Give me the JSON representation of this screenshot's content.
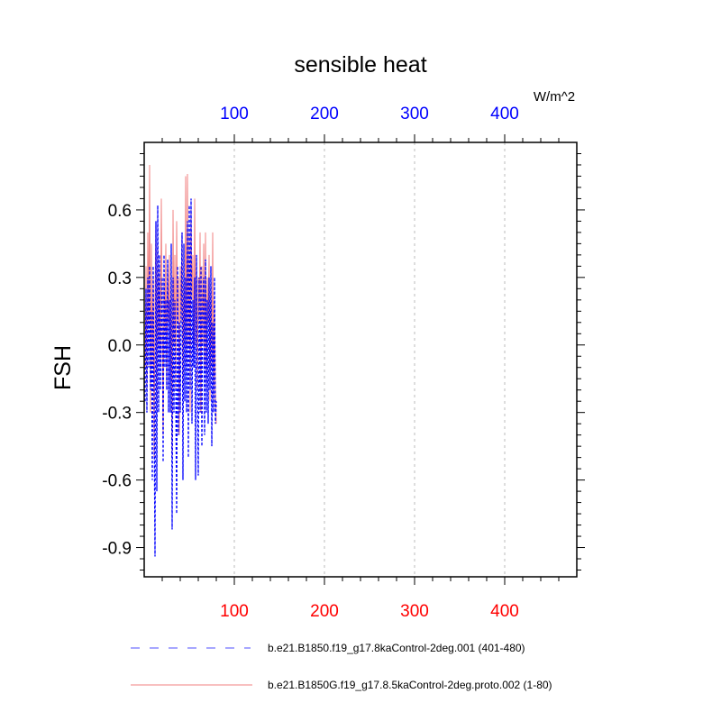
{
  "chart_data": {
    "type": "line",
    "title": "sensible heat",
    "ylabel": "FSH",
    "units_label": "W/m^2",
    "xlim": [
      0,
      480
    ],
    "ylim": [
      -1.03,
      0.9
    ],
    "y_ticks": [
      {
        "value": 0.6,
        "label": "0.6"
      },
      {
        "value": 0.3,
        "label": "0.3"
      },
      {
        "value": 0.0,
        "label": "0.0"
      },
      {
        "value": -0.3,
        "label": "-0.3"
      },
      {
        "value": -0.6,
        "label": "-0.6"
      },
      {
        "value": -0.9,
        "label": "-0.9"
      }
    ],
    "top_x_ticks": [
      {
        "value": 100,
        "label": "100"
      },
      {
        "value": 200,
        "label": "200"
      },
      {
        "value": 300,
        "label": "300"
      },
      {
        "value": 400,
        "label": "400"
      }
    ],
    "bottom_x_ticks": [
      {
        "value": 100,
        "label": "100"
      },
      {
        "value": 200,
        "label": "200"
      },
      {
        "value": 300,
        "label": "300"
      },
      {
        "value": 400,
        "label": "400"
      }
    ],
    "top_axis_color": "#0000ff",
    "bottom_axis_color": "#ff0000",
    "grid": "vertical dashed at major x ticks",
    "legend_position": "bottom",
    "series": [
      {
        "name": "b.e21.B1850.f19_g17.8kaControl-2deg.001 (401-480)",
        "color": "#0000ff",
        "dash": "dashed",
        "x": [
          1,
          2,
          3,
          4,
          5,
          6,
          7,
          8,
          9,
          10,
          11,
          12,
          13,
          14,
          15,
          16,
          17,
          18,
          19,
          20,
          21,
          22,
          23,
          24,
          25,
          26,
          27,
          28,
          29,
          30,
          31,
          32,
          33,
          34,
          35,
          36,
          37,
          38,
          39,
          40,
          41,
          42,
          43,
          44,
          45,
          46,
          47,
          48,
          49,
          50,
          51,
          52,
          53,
          54,
          55,
          56,
          57,
          58,
          59,
          60,
          61,
          62,
          63,
          64,
          65,
          66,
          67,
          68,
          69,
          70,
          71,
          72,
          73,
          74,
          75,
          76,
          77,
          78,
          79,
          80
        ],
        "y": [
          -0.25,
          0.25,
          -0.3,
          0.3,
          -0.1,
          0.35,
          -0.2,
          0.15,
          -0.6,
          0.35,
          -0.28,
          -0.94,
          0.55,
          -0.65,
          0.62,
          -0.3,
          0.4,
          -0.2,
          0.1,
          0.3,
          -0.52,
          0.4,
          -0.1,
          0.2,
          -0.2,
          0.38,
          -0.3,
          0.2,
          -0.3,
          0.45,
          -0.82,
          0.3,
          -0.3,
          0.2,
          -0.2,
          -0.75,
          0.35,
          -0.4,
          0.1,
          -0.3,
          0.15,
          0.5,
          -0.6,
          0.45,
          -0.25,
          0.3,
          -0.3,
          0.55,
          -0.5,
          0.62,
          -0.2,
          0.65,
          -0.35,
          0.2,
          -0.1,
          0.3,
          -0.6,
          0.4,
          -0.2,
          -0.58,
          0.3,
          -0.3,
          0.35,
          -0.45,
          0.2,
          0.3,
          -0.4,
          0.38,
          -0.3,
          0.2,
          -0.35,
          0.3,
          -0.2,
          0.35,
          -0.45,
          0.1,
          -0.3,
          0.3,
          -0.35,
          -0.25
        ]
      },
      {
        "name": "b.e21.B1850G.f19_g17.8.5kaControl-2deg.proto.002 (1-80)",
        "color": "#f08080",
        "dash": "solid",
        "x": [
          1,
          2,
          3,
          4,
          5,
          6,
          7,
          8,
          9,
          10,
          11,
          12,
          13,
          14,
          15,
          16,
          17,
          18,
          19,
          20,
          21,
          22,
          23,
          24,
          25,
          26,
          27,
          28,
          29,
          30,
          31,
          32,
          33,
          34,
          35,
          36,
          37,
          38,
          39,
          40,
          41,
          42,
          43,
          44,
          45,
          46,
          47,
          48,
          49,
          50,
          51,
          52,
          53,
          54,
          55,
          56,
          57,
          58,
          59,
          60,
          61,
          62,
          63,
          64,
          65,
          66,
          67,
          68,
          69,
          70,
          71,
          72,
          73,
          74,
          75,
          76,
          77,
          78,
          79,
          80
        ],
        "y": [
          -0.1,
          0.35,
          -0.2,
          0.5,
          0.1,
          0.8,
          -0.3,
          0.45,
          -0.1,
          0.3,
          -0.5,
          0.2,
          0.55,
          -0.3,
          0.45,
          0.0,
          0.35,
          -0.1,
          0.65,
          0.1,
          -0.4,
          0.3,
          0.05,
          0.45,
          -0.2,
          0.35,
          0.1,
          0.4,
          -0.2,
          0.3,
          -0.5,
          0.6,
          0.0,
          0.4,
          -0.2,
          0.55,
          0.1,
          0.3,
          -0.4,
          0.35,
          0.1,
          0.5,
          -0.2,
          0.3,
          0.0,
          0.75,
          -0.1,
          0.76,
          0.0,
          0.5,
          -0.3,
          0.6,
          0.2,
          0.4,
          -0.1,
          0.65,
          0.0,
          0.4,
          -0.2,
          0.3,
          0.1,
          0.5,
          -0.3,
          0.35,
          0.0,
          0.45,
          -0.1,
          0.5,
          -0.2,
          0.3,
          0.1,
          0.4,
          -0.25,
          0.3,
          -0.1,
          0.5,
          -0.3,
          0.2,
          -0.2,
          -0.35
        ]
      }
    ]
  }
}
